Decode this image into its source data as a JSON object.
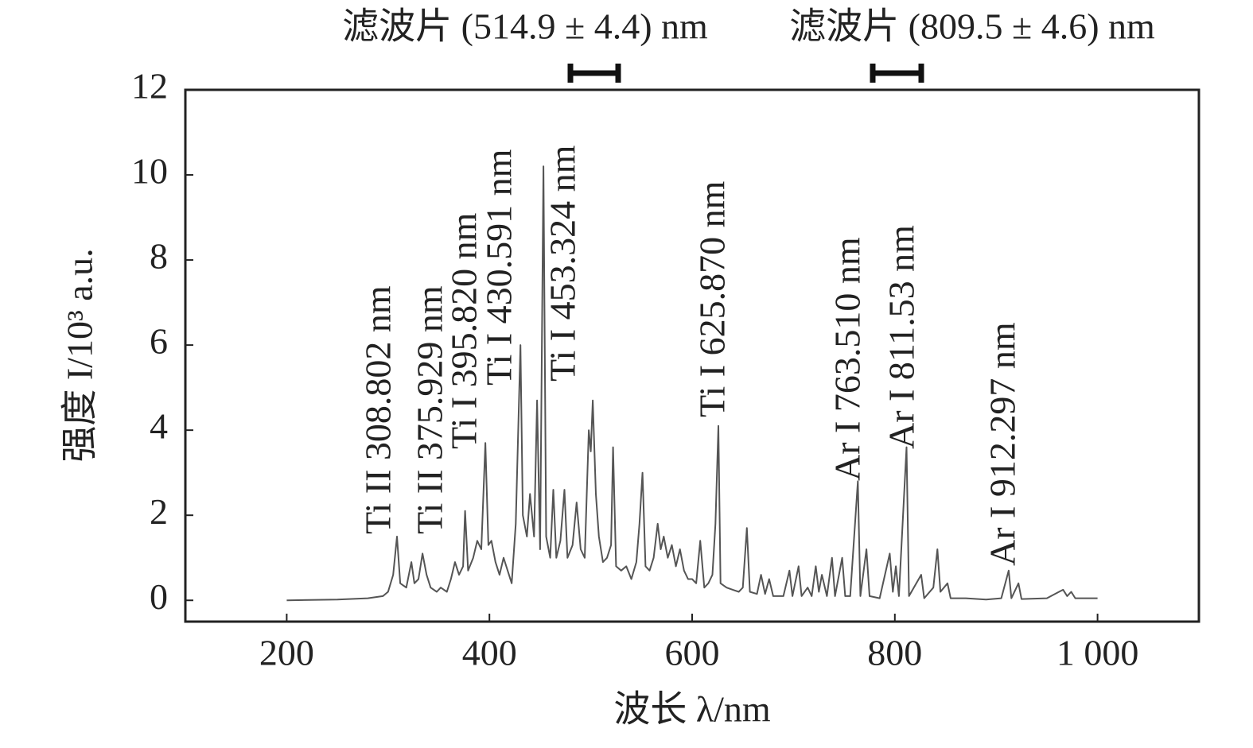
{
  "chart_data": {
    "type": "line",
    "filter_labels": [
      "滤波片 (514.9 ± 4.4) nm",
      "滤波片 (809.5 ± 4.6) nm"
    ],
    "xlabel": "波长 λ/nm",
    "ylabel": "强度 I/10³ a.u.",
    "annotations": [
      "Ti II 308.802 nm",
      "Ti II 375.929 nm",
      "Ti I 395.820 nm",
      "Ti I 430.591 nm",
      "Ti I 453.324 nm",
      "Ti I 625.870 nm",
      "Ar I 763.510 nm",
      "Ar I 811.53 nm",
      "Ar I 912.297 nm"
    ],
    "xlim": [
      100,
      1100
    ],
    "ylim": [
      -0.5,
      12
    ],
    "xticks": [
      200,
      400,
      600,
      800,
      {
        "value": 1000,
        "label": "1 000"
      }
    ],
    "yticks": [
      0,
      2,
      4,
      6,
      8,
      10,
      12
    ],
    "grid": false,
    "series": [
      {
        "color": "#555555",
        "x": [
          200,
          250,
          280,
          295,
          300,
          305,
          308.8,
          312,
          318,
          323,
          326,
          330,
          334,
          338,
          342,
          348,
          352,
          358,
          362,
          366,
          370,
          374,
          376,
          379,
          384,
          388,
          392,
          396,
          399,
          402,
          406,
          410,
          414,
          418,
          422,
          426,
          430.6,
          433,
          437,
          440,
          444,
          447,
          450,
          453.3,
          456,
          460,
          463,
          466,
          470,
          474,
          477,
          482,
          486,
          490,
          494,
          498,
          500,
          502,
          505,
          508,
          512,
          516,
          520,
          522,
          525,
          530,
          535,
          540,
          545,
          548,
          551,
          554,
          558,
          562,
          566,
          569,
          572,
          576,
          580,
          584,
          588,
          592,
          596,
          600,
          604,
          608,
          612,
          616,
          620,
          623,
          625.9,
          628,
          634,
          640,
          646,
          650,
          654,
          657,
          664,
          668,
          672,
          676,
          680,
          690,
          696,
          699,
          705,
          708,
          714,
          718,
          722,
          725,
          728,
          733,
          738,
          741,
          748,
          751,
          756,
          763.5,
          766,
          772,
          775,
          785,
          795,
          798,
          801,
          804,
          811.5,
          814,
          826,
          829,
          838,
          842,
          845,
          852,
          855,
          870,
          890,
          905,
          912.3,
          915,
          922,
          925,
          950,
          962,
          966,
          970,
          974,
          978,
          1000
        ],
        "values": [
          0,
          0.02,
          0.05,
          0.1,
          0.2,
          0.6,
          1.5,
          0.4,
          0.3,
          0.9,
          0.4,
          0.5,
          1.1,
          0.6,
          0.3,
          0.2,
          0.3,
          0.2,
          0.5,
          0.9,
          0.6,
          0.8,
          2.1,
          0.7,
          1.0,
          1.4,
          1.2,
          3.7,
          1.3,
          1.4,
          0.9,
          0.6,
          1.0,
          0.7,
          0.4,
          1.8,
          6.0,
          2.0,
          1.5,
          2.5,
          1.5,
          4.7,
          1.2,
          10.2,
          1.5,
          1.0,
          2.6,
          1.0,
          1.4,
          2.6,
          1.0,
          1.3,
          2.3,
          1.2,
          1.0,
          4.0,
          3.5,
          4.7,
          2.5,
          1.5,
          0.9,
          1.0,
          1.3,
          3.6,
          0.8,
          0.7,
          0.8,
          0.5,
          0.9,
          1.8,
          3.0,
          0.8,
          0.7,
          1.0,
          1.8,
          1.2,
          1.5,
          1.0,
          1.3,
          0.8,
          1.2,
          0.7,
          0.5,
          0.5,
          0.4,
          1.4,
          0.3,
          0.4,
          0.6,
          1.8,
          4.1,
          0.4,
          0.3,
          0.25,
          0.2,
          0.3,
          1.7,
          0.2,
          0.15,
          0.6,
          0.15,
          0.5,
          0.1,
          0.1,
          0.7,
          0.1,
          0.8,
          0.1,
          0.3,
          0.1,
          0.8,
          0.2,
          0.6,
          0.1,
          1.0,
          0.1,
          1.0,
          0.1,
          0.1,
          2.8,
          0.1,
          1.2,
          0.1,
          0.05,
          1.1,
          0.2,
          0.8,
          0.1,
          3.6,
          0.1,
          0.6,
          0.05,
          0.3,
          1.2,
          0.2,
          0.4,
          0.05,
          0.05,
          0.02,
          0.05,
          0.7,
          0.05,
          0.4,
          0.03,
          0.05,
          0.2,
          0.25,
          0.1,
          0.2,
          0.05,
          0.05
        ]
      }
    ]
  }
}
